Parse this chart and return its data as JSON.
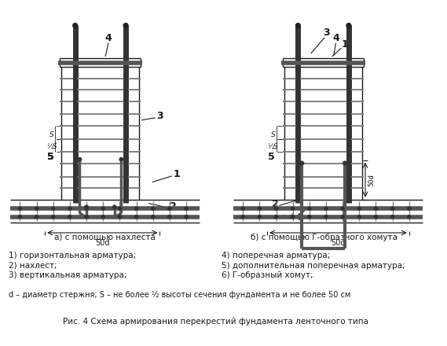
{
  "title": "Рис. 4 Схема армирования перекрестий фундамента ленточного типа",
  "subtitle_a": "а) с помощью нахлеста",
  "subtitle_b": "б) с помощью Г-образного хомута",
  "legend_left": [
    "1) горизонтальная арматура;",
    "2) нахлест;",
    "3) вертикальная арматура;"
  ],
  "legend_right": [
    "4) поперечная арматура;",
    "5) дополнительная поперечная арматура;",
    "6) Г-образный хомут;"
  ],
  "legend_note": "d – диаметр стержня; S – не более ½ высоты сечения фундамента и не более 50 см",
  "bg_color": "#ffffff",
  "line_color": "#1a1a1a",
  "rebar_color": "#555555",
  "rebar_thick_color": "#333333",
  "font_size_main": 7.5,
  "font_size_label": 9.0
}
